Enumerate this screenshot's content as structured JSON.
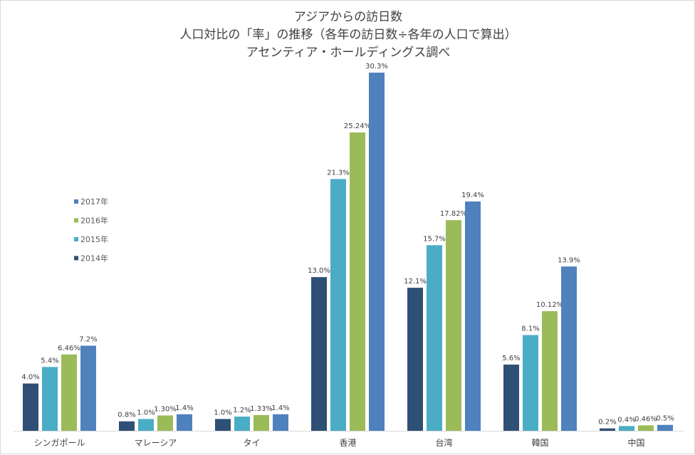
{
  "chart_data": {
    "type": "bar",
    "title": [
      "アジアからの訪日数",
      "人口対比の「率」の推移（各年の訪日数÷各年の人口で算出）",
      "アセンティア・ホールディングス調べ"
    ],
    "xlabel": "",
    "ylabel": "",
    "ylim": [
      0,
      30.3
    ],
    "grid": false,
    "legend_position": "left",
    "categories": [
      "シンガポール",
      "マレーシア",
      "タイ",
      "香港",
      "台湾",
      "韓国",
      "中国"
    ],
    "series": [
      {
        "name": "2014年",
        "color": "#2f4f75",
        "values": [
          4.0,
          0.8,
          1.0,
          13.0,
          12.1,
          5.6,
          0.2
        ],
        "labels": [
          "4.0%",
          "0.8%",
          "1.0%",
          "13.0%",
          "12.1%",
          "5.6%",
          "0.2%"
        ]
      },
      {
        "name": "2015年",
        "color": "#4bacc6",
        "values": [
          5.4,
          1.0,
          1.2,
          21.3,
          15.7,
          8.1,
          0.4
        ],
        "labels": [
          "5.4%",
          "1.0%",
          "1.2%",
          "21.3%",
          "15.7%",
          "8.1%",
          "0.4%"
        ]
      },
      {
        "name": "2016年",
        "color": "#9bbb59",
        "values": [
          6.46,
          1.3,
          1.33,
          25.24,
          17.82,
          10.12,
          0.46
        ],
        "labels": [
          "6.46%",
          "1.30%",
          "1.33%",
          "25.24%",
          "17.82%",
          "10.12%",
          "0.46%"
        ]
      },
      {
        "name": "2017年",
        "color": "#4f81bd",
        "values": [
          7.2,
          1.4,
          1.4,
          30.3,
          19.4,
          13.9,
          0.5
        ],
        "labels": [
          "7.2%",
          "1.4%",
          "1.4%",
          "30.3%",
          "19.4%",
          "13.9%",
          "0.5%"
        ]
      }
    ]
  }
}
